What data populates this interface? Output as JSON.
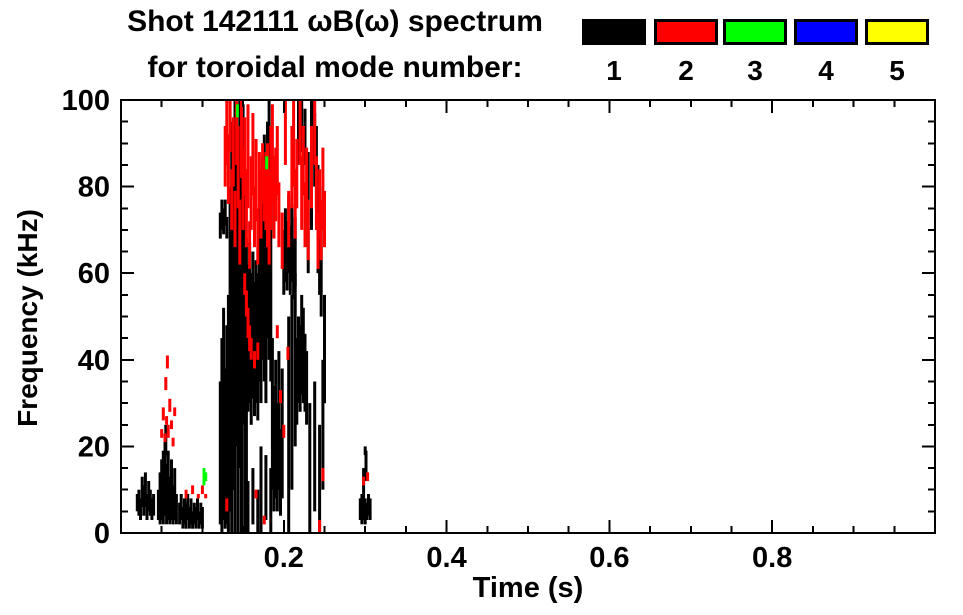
{
  "title": {
    "line1": "Shot 142111 ωB(ω) spectrum",
    "line2": "for toroidal mode number:"
  },
  "legend": {
    "modes": [
      {
        "label": "1",
        "color": "#000000"
      },
      {
        "label": "2",
        "color": "#ff0000"
      },
      {
        "label": "3",
        "color": "#00ff00"
      },
      {
        "label": "4",
        "color": "#0000ff"
      },
      {
        "label": "5",
        "color": "#ffff00"
      }
    ]
  },
  "chart_data": {
    "type": "scatter",
    "title": "Shot 142111 ωB(ω) spectrum for toroidal mode number: 1 2 3 4 5",
    "xlabel": "Time (s)",
    "ylabel": "Frequency (kHz)",
    "xlim": [
      0,
      1.0
    ],
    "ylim": [
      0,
      100
    ],
    "x_major_ticks": [
      0.2,
      0.4,
      0.6,
      0.8
    ],
    "x_tick_labels": [
      "0.2",
      "0.4",
      "0.6",
      "0.8"
    ],
    "x_minor_step": 0.05,
    "y_major_ticks": [
      0,
      20,
      40,
      60,
      80,
      100
    ],
    "y_tick_labels": [
      "0",
      "20",
      "40",
      "60",
      "80",
      "100"
    ],
    "y_minor_step": 5,
    "grid": false,
    "legend_position": "top-right",
    "series": [
      {
        "name": "n=1",
        "mode": 1,
        "color": "#000000",
        "segments": [
          [
            0.02,
            5,
            9
          ],
          [
            0.022,
            4,
            10
          ],
          [
            0.024,
            3,
            8
          ],
          [
            0.026,
            6,
            13
          ],
          [
            0.028,
            4,
            11
          ],
          [
            0.03,
            6,
            14
          ],
          [
            0.032,
            3,
            9
          ],
          [
            0.034,
            5,
            12
          ],
          [
            0.036,
            4,
            10
          ],
          [
            0.038,
            3,
            8
          ],
          [
            0.04,
            4,
            9
          ],
          [
            0.046,
            3,
            10
          ],
          [
            0.048,
            2,
            14
          ],
          [
            0.05,
            3,
            17
          ],
          [
            0.052,
            2,
            19
          ],
          [
            0.054,
            4,
            21
          ],
          [
            0.056,
            2,
            16
          ],
          [
            0.058,
            3,
            19
          ],
          [
            0.06,
            2,
            13
          ],
          [
            0.062,
            3,
            17
          ],
          [
            0.064,
            2,
            11
          ],
          [
            0.066,
            3,
            15
          ],
          [
            0.068,
            2,
            9
          ],
          [
            0.055,
            18,
            25
          ],
          [
            0.072,
            2,
            7
          ],
          [
            0.074,
            3,
            9
          ],
          [
            0.076,
            1,
            6
          ],
          [
            0.078,
            2,
            8
          ],
          [
            0.08,
            1,
            7
          ],
          [
            0.082,
            3,
            9
          ],
          [
            0.084,
            1,
            6
          ],
          [
            0.086,
            2,
            8
          ],
          [
            0.088,
            1,
            5
          ],
          [
            0.09,
            2,
            7
          ],
          [
            0.092,
            1,
            6
          ],
          [
            0.094,
            3,
            8
          ],
          [
            0.096,
            1,
            5
          ],
          [
            0.098,
            2,
            7
          ],
          [
            0.1,
            1,
            6
          ],
          [
            0.122,
            2,
            35
          ],
          [
            0.124,
            0,
            45
          ],
          [
            0.126,
            3,
            52
          ],
          [
            0.128,
            1,
            38
          ],
          [
            0.13,
            2,
            48
          ],
          [
            0.132,
            0,
            55
          ],
          [
            0.122,
            68,
            74
          ],
          [
            0.124,
            70,
            77
          ],
          [
            0.126,
            69,
            75
          ],
          [
            0.128,
            71,
            77
          ],
          [
            0.13,
            68,
            73
          ],
          [
            0.134,
            5,
            80
          ],
          [
            0.136,
            0,
            95
          ],
          [
            0.138,
            10,
            88
          ],
          [
            0.14,
            0,
            100
          ],
          [
            0.142,
            20,
            93
          ],
          [
            0.144,
            0,
            87
          ],
          [
            0.146,
            15,
            100
          ],
          [
            0.148,
            0,
            90
          ],
          [
            0.15,
            25,
            99
          ],
          [
            0.152,
            0,
            84
          ],
          [
            0.154,
            0,
            68
          ],
          [
            0.156,
            28,
            62
          ],
          [
            0.158,
            30,
            67
          ],
          [
            0.16,
            25,
            60
          ],
          [
            0.162,
            31,
            65
          ],
          [
            0.164,
            27,
            58
          ],
          [
            0.166,
            30,
            63
          ],
          [
            0.168,
            26,
            60
          ],
          [
            0.156,
            0,
            12
          ],
          [
            0.162,
            2,
            15
          ],
          [
            0.168,
            0,
            10
          ],
          [
            0.17,
            35,
            75
          ],
          [
            0.172,
            30,
            70
          ],
          [
            0.174,
            40,
            87
          ],
          [
            0.176,
            35,
            92
          ],
          [
            0.178,
            30,
            80
          ],
          [
            0.18,
            45,
            95
          ],
          [
            0.182,
            40,
            100
          ],
          [
            0.184,
            35,
            90
          ],
          [
            0.172,
            0,
            20
          ],
          [
            0.178,
            3,
            18
          ],
          [
            0.184,
            0,
            15
          ],
          [
            0.186,
            10,
            45
          ],
          [
            0.188,
            5,
            34
          ],
          [
            0.19,
            8,
            40
          ],
          [
            0.192,
            5,
            30
          ],
          [
            0.194,
            10,
            42
          ],
          [
            0.196,
            4,
            24
          ],
          [
            0.198,
            8,
            38
          ],
          [
            0.2,
            55,
            70
          ],
          [
            0.202,
            58,
            75
          ],
          [
            0.204,
            56,
            72
          ],
          [
            0.206,
            60,
            78
          ],
          [
            0.208,
            55,
            71
          ],
          [
            0.21,
            58,
            76
          ],
          [
            0.212,
            54,
            68
          ],
          [
            0.214,
            57,
            73
          ],
          [
            0.206,
            0,
            50
          ],
          [
            0.21,
            10,
            55
          ],
          [
            0.214,
            20,
            60
          ],
          [
            0.216,
            25,
            45
          ],
          [
            0.218,
            30,
            50
          ],
          [
            0.22,
            28,
            48
          ],
          [
            0.222,
            32,
            55
          ],
          [
            0.224,
            30,
            52
          ],
          [
            0.226,
            28,
            46
          ],
          [
            0.228,
            25,
            42
          ],
          [
            0.218,
            85,
            100
          ],
          [
            0.222,
            88,
            100
          ],
          [
            0.226,
            85,
            98
          ],
          [
            0.23,
            60,
            88
          ],
          [
            0.232,
            0,
            30
          ],
          [
            0.234,
            70,
            100
          ],
          [
            0.236,
            85,
            100
          ],
          [
            0.238,
            80,
            97
          ],
          [
            0.238,
            5,
            35
          ],
          [
            0.24,
            75,
            94
          ],
          [
            0.242,
            60,
            85
          ],
          [
            0.244,
            0,
            25
          ],
          [
            0.244,
            55,
            80
          ],
          [
            0.246,
            50,
            75
          ],
          [
            0.248,
            10,
            40
          ],
          [
            0.25,
            30,
            55
          ],
          [
            0.294,
            3,
            8
          ],
          [
            0.296,
            2,
            9
          ],
          [
            0.298,
            3,
            9
          ],
          [
            0.3,
            2,
            8
          ],
          [
            0.302,
            3,
            7
          ],
          [
            0.304,
            4,
            9
          ],
          [
            0.306,
            3,
            8
          ],
          [
            0.298,
            9,
            15
          ],
          [
            0.301,
            12,
            19
          ],
          [
            0.3,
            18,
            20
          ]
        ]
      },
      {
        "name": "n=2",
        "mode": 2,
        "color": "#ff0000",
        "segments": [
          [
            0.05,
            22,
            24
          ],
          [
            0.052,
            26,
            29
          ],
          [
            0.054,
            21,
            23
          ],
          [
            0.055,
            33,
            36
          ],
          [
            0.056,
            25,
            27
          ],
          [
            0.057,
            38,
            41
          ],
          [
            0.058,
            22,
            25
          ],
          [
            0.06,
            28,
            31
          ],
          [
            0.062,
            24,
            26
          ],
          [
            0.064,
            20,
            22
          ],
          [
            0.066,
            27,
            29
          ],
          [
            0.08,
            8,
            10
          ],
          [
            0.088,
            9,
            11
          ],
          [
            0.095,
            8,
            9
          ],
          [
            0.1,
            9,
            11
          ],
          [
            0.104,
            8,
            9
          ],
          [
            0.128,
            80,
            94
          ],
          [
            0.13,
            85,
            100
          ],
          [
            0.132,
            76,
            92
          ],
          [
            0.134,
            88,
            100
          ],
          [
            0.136,
            70,
            84
          ],
          [
            0.138,
            80,
            96
          ],
          [
            0.14,
            66,
            79
          ],
          [
            0.142,
            85,
            100
          ],
          [
            0.144,
            75,
            94
          ],
          [
            0.146,
            62,
            77
          ],
          [
            0.148,
            82,
            100
          ],
          [
            0.15,
            70,
            89
          ],
          [
            0.152,
            78,
            96
          ],
          [
            0.154,
            66,
            84
          ],
          [
            0.156,
            75,
            99
          ],
          [
            0.158,
            61,
            72
          ],
          [
            0.16,
            70,
            87
          ],
          [
            0.162,
            78,
            97
          ],
          [
            0.164,
            66,
            80
          ],
          [
            0.166,
            72,
            91
          ],
          [
            0.168,
            62,
            75
          ],
          [
            0.17,
            75,
            88
          ],
          [
            0.172,
            68,
            84
          ],
          [
            0.174,
            76,
            90
          ],
          [
            0.176,
            72,
            86
          ],
          [
            0.178,
            70,
            88
          ],
          [
            0.18,
            66,
            90
          ],
          [
            0.182,
            62,
            84
          ],
          [
            0.184,
            70,
            94
          ],
          [
            0.186,
            76,
            99
          ],
          [
            0.188,
            68,
            87
          ],
          [
            0.19,
            72,
            89
          ],
          [
            0.192,
            78,
            94
          ],
          [
            0.194,
            66,
            81
          ],
          [
            0.198,
            61,
            74
          ],
          [
            0.202,
            85,
            100
          ],
          [
            0.206,
            66,
            79
          ],
          [
            0.21,
            75,
            94
          ],
          [
            0.212,
            80,
            100
          ],
          [
            0.214,
            68,
            84
          ],
          [
            0.216,
            75,
            91
          ],
          [
            0.22,
            85,
            100
          ],
          [
            0.222,
            70,
            87
          ],
          [
            0.224,
            78,
            94
          ],
          [
            0.226,
            66,
            81
          ],
          [
            0.228,
            72,
            89
          ],
          [
            0.23,
            63,
            77
          ],
          [
            0.234,
            75,
            94
          ],
          [
            0.238,
            85,
            100
          ],
          [
            0.24,
            70,
            87
          ],
          [
            0.242,
            61,
            74
          ],
          [
            0.244,
            68,
            84
          ],
          [
            0.246,
            63,
            77
          ],
          [
            0.248,
            70,
            89
          ],
          [
            0.25,
            66,
            79
          ],
          [
            0.152,
            55,
            60
          ],
          [
            0.154,
            50,
            56
          ],
          [
            0.156,
            45,
            52
          ],
          [
            0.158,
            42,
            48
          ],
          [
            0.16,
            40,
            45
          ],
          [
            0.164,
            38,
            42
          ],
          [
            0.168,
            40,
            44
          ],
          [
            0.192,
            45,
            48
          ],
          [
            0.196,
            30,
            33
          ],
          [
            0.2,
            22,
            25
          ],
          [
            0.205,
            40,
            43
          ],
          [
            0.13,
            5,
            8
          ],
          [
            0.166,
            8,
            10
          ],
          [
            0.176,
            2,
            4
          ],
          [
            0.244,
            0,
            3
          ],
          [
            0.248,
            12,
            15
          ],
          [
            0.298,
            11,
            13
          ],
          [
            0.303,
            12,
            14
          ]
        ]
      },
      {
        "name": "n=3",
        "mode": 3,
        "color": "#00ff00",
        "segments": [
          [
            0.102,
            11,
            15
          ],
          [
            0.104,
            12,
            14
          ],
          [
            0.143,
            96,
            99
          ],
          [
            0.179,
            84,
            87
          ]
        ]
      },
      {
        "name": "n=4",
        "mode": 4,
        "color": "#0000ff",
        "segments": []
      },
      {
        "name": "n=5",
        "mode": 5,
        "color": "#ffff00",
        "segments": []
      }
    ]
  }
}
